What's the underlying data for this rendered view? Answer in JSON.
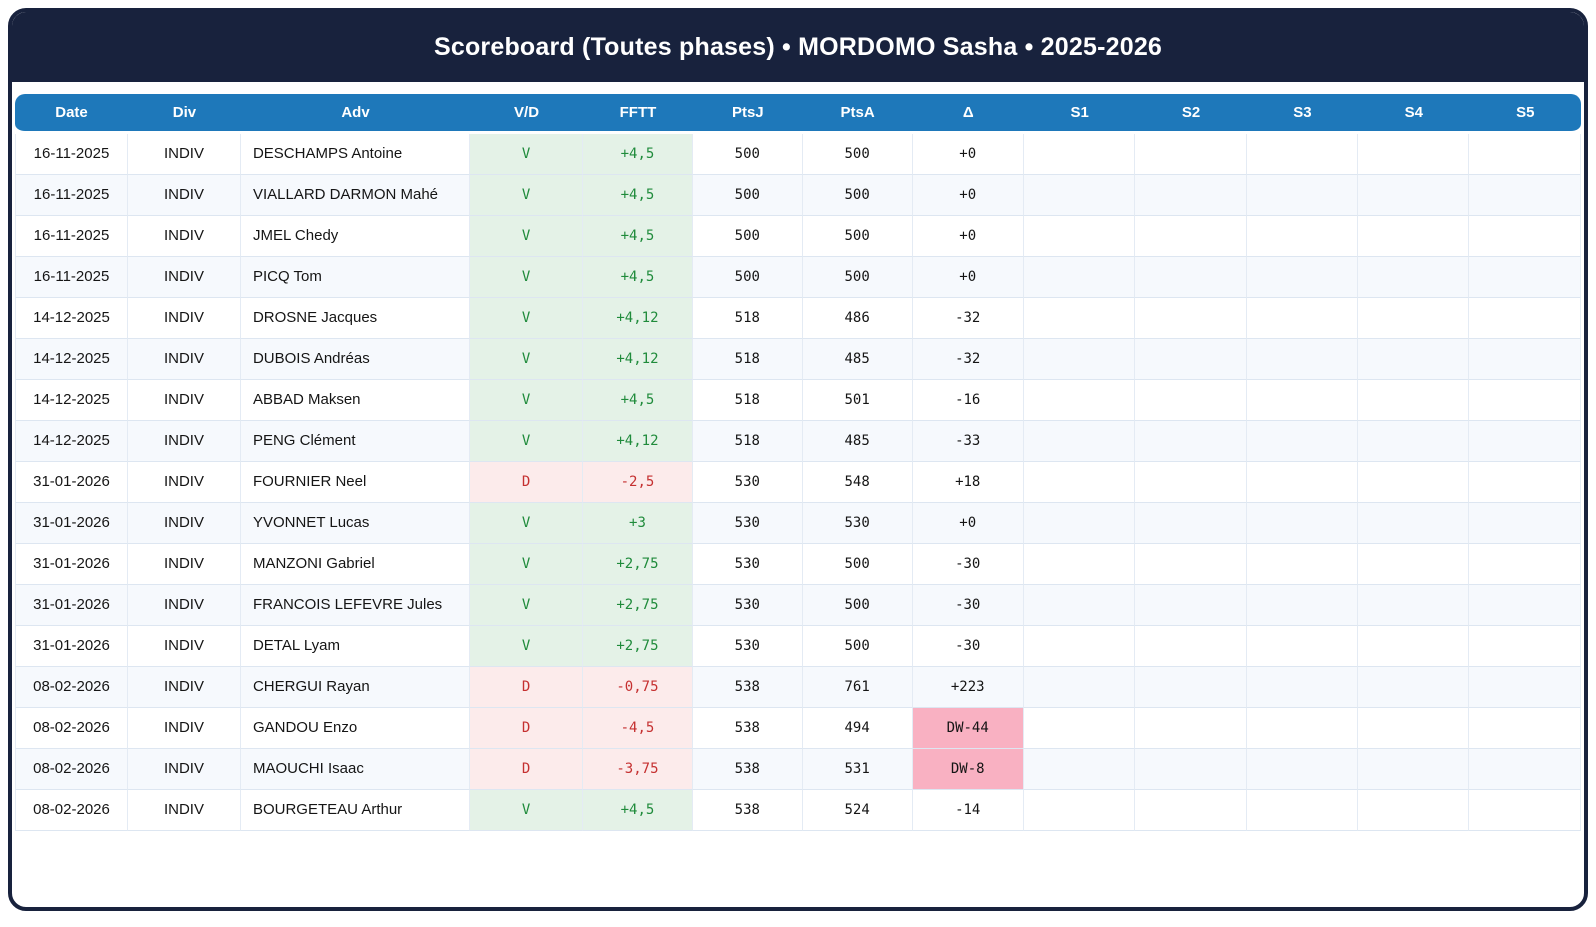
{
  "header": {
    "title": "Scoreboard (Toutes phases) • MORDOMO Sasha • 2025-2026"
  },
  "table": {
    "columns": [
      "Date",
      "Div",
      "Adv",
      "V/D",
      "FFTT",
      "PtsJ",
      "PtsA",
      "Δ",
      "S1",
      "S2",
      "S3",
      "S4",
      "S5"
    ],
    "rows": [
      {
        "date": "16-11-2025",
        "div": "INDIV",
        "adv": "DESCHAMPS Antoine",
        "vd": "V",
        "fftt": "+4,5",
        "ptsj": "500",
        "ptsa": "500",
        "delta": "+0",
        "s1": "",
        "s2": "",
        "s3": "",
        "s4": "",
        "s5": ""
      },
      {
        "date": "16-11-2025",
        "div": "INDIV",
        "adv": "VIALLARD DARMON Mahé",
        "vd": "V",
        "fftt": "+4,5",
        "ptsj": "500",
        "ptsa": "500",
        "delta": "+0",
        "s1": "",
        "s2": "",
        "s3": "",
        "s4": "",
        "s5": ""
      },
      {
        "date": "16-11-2025",
        "div": "INDIV",
        "adv": "JMEL Chedy",
        "vd": "V",
        "fftt": "+4,5",
        "ptsj": "500",
        "ptsa": "500",
        "delta": "+0",
        "s1": "",
        "s2": "",
        "s3": "",
        "s4": "",
        "s5": ""
      },
      {
        "date": "16-11-2025",
        "div": "INDIV",
        "adv": "PICQ Tom",
        "vd": "V",
        "fftt": "+4,5",
        "ptsj": "500",
        "ptsa": "500",
        "delta": "+0",
        "s1": "",
        "s2": "",
        "s3": "",
        "s4": "",
        "s5": ""
      },
      {
        "date": "14-12-2025",
        "div": "INDIV",
        "adv": "DROSNE Jacques",
        "vd": "V",
        "fftt": "+4,12",
        "ptsj": "518",
        "ptsa": "486",
        "delta": "-32",
        "s1": "",
        "s2": "",
        "s3": "",
        "s4": "",
        "s5": ""
      },
      {
        "date": "14-12-2025",
        "div": "INDIV",
        "adv": "DUBOIS Andréas",
        "vd": "V",
        "fftt": "+4,12",
        "ptsj": "518",
        "ptsa": "485",
        "delta": "-32",
        "s1": "",
        "s2": "",
        "s3": "",
        "s4": "",
        "s5": ""
      },
      {
        "date": "14-12-2025",
        "div": "INDIV",
        "adv": "ABBAD Maksen",
        "vd": "V",
        "fftt": "+4,5",
        "ptsj": "518",
        "ptsa": "501",
        "delta": "-16",
        "s1": "",
        "s2": "",
        "s3": "",
        "s4": "",
        "s5": ""
      },
      {
        "date": "14-12-2025",
        "div": "INDIV",
        "adv": "PENG Clément",
        "vd": "V",
        "fftt": "+4,12",
        "ptsj": "518",
        "ptsa": "485",
        "delta": "-33",
        "s1": "",
        "s2": "",
        "s3": "",
        "s4": "",
        "s5": ""
      },
      {
        "date": "31-01-2026",
        "div": "INDIV",
        "adv": "FOURNIER Neel",
        "vd": "D",
        "fftt": "-2,5",
        "ptsj": "530",
        "ptsa": "548",
        "delta": "+18",
        "s1": "",
        "s2": "",
        "s3": "",
        "s4": "",
        "s5": ""
      },
      {
        "date": "31-01-2026",
        "div": "INDIV",
        "adv": "YVONNET Lucas",
        "vd": "V",
        "fftt": "+3",
        "ptsj": "530",
        "ptsa": "530",
        "delta": "+0",
        "s1": "",
        "s2": "",
        "s3": "",
        "s4": "",
        "s5": ""
      },
      {
        "date": "31-01-2026",
        "div": "INDIV",
        "adv": "MANZONI Gabriel",
        "vd": "V",
        "fftt": "+2,75",
        "ptsj": "530",
        "ptsa": "500",
        "delta": "-30",
        "s1": "",
        "s2": "",
        "s3": "",
        "s4": "",
        "s5": ""
      },
      {
        "date": "31-01-2026",
        "div": "INDIV",
        "adv": "FRANCOIS LEFEVRE Jules",
        "vd": "V",
        "fftt": "+2,75",
        "ptsj": "530",
        "ptsa": "500",
        "delta": "-30",
        "s1": "",
        "s2": "",
        "s3": "",
        "s4": "",
        "s5": ""
      },
      {
        "date": "31-01-2026",
        "div": "INDIV",
        "adv": "DETAL Lyam",
        "vd": "V",
        "fftt": "+2,75",
        "ptsj": "530",
        "ptsa": "500",
        "delta": "-30",
        "s1": "",
        "s2": "",
        "s3": "",
        "s4": "",
        "s5": ""
      },
      {
        "date": "08-02-2026",
        "div": "INDIV",
        "adv": "CHERGUI Rayan",
        "vd": "D",
        "fftt": "-0,75",
        "ptsj": "538",
        "ptsa": "761",
        "delta": "+223",
        "s1": "",
        "s2": "",
        "s3": "",
        "s4": "",
        "s5": ""
      },
      {
        "date": "08-02-2026",
        "div": "INDIV",
        "adv": "GANDOU Enzo",
        "vd": "D",
        "fftt": "-4,5",
        "ptsj": "538",
        "ptsa": "494",
        "delta": "DW-44",
        "s1": "",
        "s2": "",
        "s3": "",
        "s4": "",
        "s5": ""
      },
      {
        "date": "08-02-2026",
        "div": "INDIV",
        "adv": "MAOUCHI Isaac",
        "vd": "D",
        "fftt": "-3,75",
        "ptsj": "538",
        "ptsa": "531",
        "delta": "DW-8",
        "s1": "",
        "s2": "",
        "s3": "",
        "s4": "",
        "s5": ""
      },
      {
        "date": "08-02-2026",
        "div": "INDIV",
        "adv": "BOURGETEAU Arthur",
        "vd": "V",
        "fftt": "+4,5",
        "ptsj": "538",
        "ptsa": "524",
        "delta": "-14",
        "s1": "",
        "s2": "",
        "s3": "",
        "s4": "",
        "s5": ""
      }
    ]
  },
  "colors": {
    "navy": "#18223d",
    "header_blue": "#1e78ba",
    "win_bg": "#e4f2e7",
    "win_text": "#1f8b3b",
    "loss_bg": "#fcebeb",
    "loss_text": "#c53030",
    "dw_bg": "#f9b1c2",
    "stripe_bg": "#f6f9fd",
    "cell_border": "#dde6f1"
  }
}
